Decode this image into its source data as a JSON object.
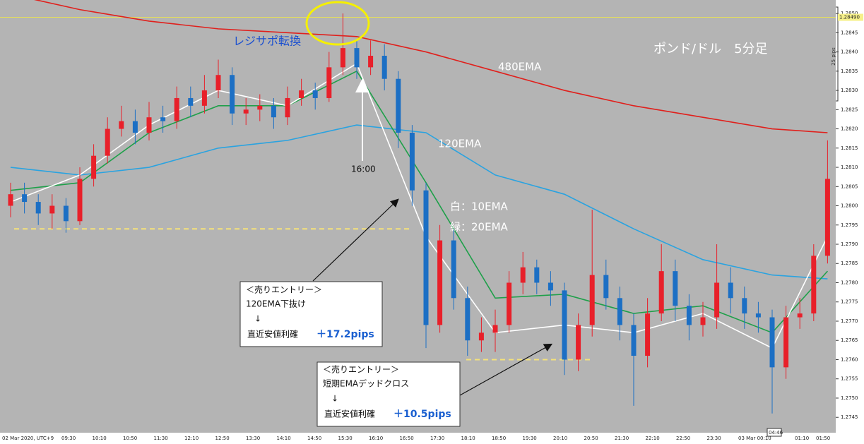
{
  "chart_data": {
    "type": "candlestick",
    "title": "ポンド/ドル　5分足",
    "up_color": "#e8202a",
    "down_color": "#1c6fc4",
    "ylim": [
      1.2741,
      1.28535
    ],
    "yticks": [
      {
        "value": 1.2745,
        "label": "1.2745"
      },
      {
        "value": 1.275,
        "label": "1.2750"
      },
      {
        "value": 1.2755,
        "label": "1.2755"
      },
      {
        "value": 1.276,
        "label": "1.2760"
      },
      {
        "value": 1.2765,
        "label": "1.2765"
      },
      {
        "value": 1.277,
        "label": "1.2770"
      },
      {
        "value": 1.2775,
        "label": "1.2775"
      },
      {
        "value": 1.278,
        "label": "1.2780"
      },
      {
        "value": 1.2785,
        "label": "1.2785"
      },
      {
        "value": 1.279,
        "label": "1.2790"
      },
      {
        "value": 1.2795,
        "label": "1.2795"
      },
      {
        "value": 1.28,
        "label": "1.2800"
      },
      {
        "value": 1.2805,
        "label": "1.2805"
      },
      {
        "value": 1.281,
        "label": "1.2810"
      },
      {
        "value": 1.2815,
        "label": "1.2815"
      },
      {
        "value": 1.282,
        "label": "1.2820"
      },
      {
        "value": 1.2825,
        "label": "1.2825"
      },
      {
        "value": 1.283,
        "label": "1.2830"
      },
      {
        "value": 1.2835,
        "label": "1.2835"
      },
      {
        "value": 1.284,
        "label": "1.2840"
      },
      {
        "value": 1.2845,
        "label": "1.2845"
      },
      {
        "value": 1.285,
        "label": "1.2850"
      }
    ],
    "x_labels": [
      "02 Mar 2020, UTC+9",
      "09:30",
      "10:10",
      "10:50",
      "11:30",
      "12:10",
      "12:50",
      "13:30",
      "14:10",
      "14:50",
      "15:30",
      "16:10",
      "16:50",
      "17:30",
      "18:10",
      "18:50",
      "19:30",
      "20:10",
      "20:50",
      "21:30",
      "22:10",
      "22:50",
      "23:30",
      "03 Mar 00:10",
      "01:10",
      "01:50"
    ],
    "candles": [
      [
        1.28,
        1.2806,
        1.2797,
        1.2803
      ],
      [
        1.2803,
        1.2806,
        1.2798,
        1.2801
      ],
      [
        1.2801,
        1.2803,
        1.2795,
        1.2798
      ],
      [
        1.2798,
        1.2803,
        1.2794,
        1.28
      ],
      [
        1.28,
        1.2802,
        1.2793,
        1.2796
      ],
      [
        1.2796,
        1.281,
        1.2795,
        1.2807
      ],
      [
        1.2807,
        1.2816,
        1.2805,
        1.2813
      ],
      [
        1.2813,
        1.2823,
        1.2811,
        1.282
      ],
      [
        1.282,
        1.2826,
        1.2818,
        1.2822
      ],
      [
        1.2822,
        1.2825,
        1.2816,
        1.2819
      ],
      [
        1.2819,
        1.2827,
        1.2817,
        1.2823
      ],
      [
        1.2823,
        1.2826,
        1.2819,
        1.2822
      ],
      [
        1.2822,
        1.2831,
        1.282,
        1.2828
      ],
      [
        1.2828,
        1.2831,
        1.2823,
        1.2826
      ],
      [
        1.2826,
        1.2834,
        1.2824,
        1.283
      ],
      [
        1.283,
        1.2838,
        1.2828,
        1.2834
      ],
      [
        1.2834,
        1.2836,
        1.2821,
        1.2824
      ],
      [
        1.2824,
        1.2828,
        1.2821,
        1.2825
      ],
      [
        1.2825,
        1.2829,
        1.2822,
        1.2826
      ],
      [
        1.2826,
        1.2828,
        1.282,
        1.2823
      ],
      [
        1.2823,
        1.2831,
        1.2821,
        1.2828
      ],
      [
        1.2828,
        1.2833,
        1.2826,
        1.283
      ],
      [
        1.283,
        1.2832,
        1.2825,
        1.2828
      ],
      [
        1.2828,
        1.284,
        1.2827,
        1.2836
      ],
      [
        1.2836,
        1.285,
        1.2834,
        1.2841
      ],
      [
        1.2841,
        1.2843,
        1.2833,
        1.2836
      ],
      [
        1.2836,
        1.2843,
        1.2834,
        1.2839
      ],
      [
        1.2839,
        1.2842,
        1.283,
        1.2833
      ],
      [
        1.2833,
        1.2835,
        1.2815,
        1.2819
      ],
      [
        1.2819,
        1.2821,
        1.28,
        1.2804
      ],
      [
        1.2804,
        1.2806,
        1.2763,
        1.2769
      ],
      [
        1.2769,
        1.2795,
        1.2767,
        1.2791
      ],
      [
        1.2791,
        1.2794,
        1.2773,
        1.2776
      ],
      [
        1.2776,
        1.2779,
        1.2761,
        1.2765
      ],
      [
        1.2765,
        1.2771,
        1.2762,
        1.2767
      ],
      [
        1.2767,
        1.2773,
        1.2762,
        1.2769
      ],
      [
        1.2769,
        1.2783,
        1.2767,
        1.278
      ],
      [
        1.278,
        1.2788,
        1.2777,
        1.2784
      ],
      [
        1.2784,
        1.2786,
        1.2777,
        1.278
      ],
      [
        1.278,
        1.2783,
        1.2774,
        1.2778
      ],
      [
        1.2778,
        1.278,
        1.2756,
        1.276
      ],
      [
        1.276,
        1.2772,
        1.2757,
        1.2769
      ],
      [
        1.2769,
        1.2799,
        1.2766,
        1.2782
      ],
      [
        1.2782,
        1.2786,
        1.2773,
        1.2776
      ],
      [
        1.2776,
        1.2779,
        1.2765,
        1.2769
      ],
      [
        1.2769,
        1.2772,
        1.2748,
        1.2761
      ],
      [
        1.2761,
        1.2776,
        1.2758,
        1.2772
      ],
      [
        1.2772,
        1.279,
        1.277,
        1.2783
      ],
      [
        1.2783,
        1.2786,
        1.277,
        1.2774
      ],
      [
        1.2774,
        1.2777,
        1.2765,
        1.2769
      ],
      [
        1.2769,
        1.2775,
        1.2766,
        1.2771
      ],
      [
        1.2771,
        1.279,
        1.2768,
        1.278
      ],
      [
        1.278,
        1.2784,
        1.2772,
        1.2776
      ],
      [
        1.2776,
        1.2779,
        1.2768,
        1.2772
      ],
      [
        1.2772,
        1.2775,
        1.2767,
        1.2771
      ],
      [
        1.2771,
        1.2773,
        1.2746,
        1.2758
      ],
      [
        1.2758,
        1.2774,
        1.2755,
        1.2771
      ],
      [
        1.2771,
        1.2776,
        1.2768,
        1.2772
      ],
      [
        1.2772,
        1.279,
        1.277,
        1.2787
      ],
      [
        1.2787,
        1.2817,
        1.2785,
        1.2807
      ]
    ],
    "series": [
      {
        "name": "480EMA",
        "color": "#e0201c",
        "x": [
          0,
          5,
          10,
          15,
          20,
          25,
          30,
          35,
          40,
          45,
          50,
          55,
          59
        ],
        "values": [
          1.2855,
          1.2851,
          1.2848,
          1.2846,
          1.2845,
          1.2844,
          1.284,
          1.2835,
          1.283,
          1.2826,
          1.2823,
          1.282,
          1.2819
        ]
      },
      {
        "name": "120EMA",
        "color": "#2aa3e0",
        "x": [
          0,
          5,
          10,
          15,
          20,
          25,
          30,
          35,
          40,
          45,
          50,
          55,
          59
        ],
        "values": [
          1.281,
          1.2808,
          1.281,
          1.2815,
          1.2817,
          1.2821,
          1.2819,
          1.2808,
          1.2803,
          1.2794,
          1.2786,
          1.2782,
          1.2781
        ]
      },
      {
        "name": "緑：20EMA",
        "color": "#1fa04a",
        "x": [
          0,
          5,
          10,
          15,
          20,
          25,
          30,
          35,
          40,
          45,
          50,
          55,
          59
        ],
        "values": [
          1.2804,
          1.2806,
          1.2819,
          1.2826,
          1.2826,
          1.2835,
          1.2806,
          1.2776,
          1.2777,
          1.2772,
          1.2774,
          1.2767,
          1.2783
        ]
      },
      {
        "name": "白：10EMA",
        "color": "#ffffff",
        "x": [
          0,
          5,
          10,
          15,
          20,
          25,
          30,
          35,
          40,
          45,
          50,
          55,
          59
        ],
        "values": [
          1.2801,
          1.2808,
          1.2821,
          1.283,
          1.2826,
          1.2837,
          1.2792,
          1.2767,
          1.2769,
          1.2767,
          1.2772,
          1.2763,
          1.2792
        ]
      }
    ],
    "current_price": {
      "value": 1.2849,
      "label": "1.28490"
    },
    "levels": [
      1.2794,
      1.276
    ],
    "annotations": {
      "resisupport": "レジサポ転換",
      "time_marker": "16:00",
      "scale_label": "25 pips",
      "cursor_time": "04:46",
      "entry1": [
        "＜売りエントリー＞",
        "120EMA下抜け",
        "↓",
        "直近安値利確",
        "＋17.2pips"
      ],
      "entry2": [
        "＜売りエントリー＞",
        "短期EMAデッドクロス",
        "↓",
        "直近安値利確",
        "＋10.5pips"
      ]
    }
  }
}
